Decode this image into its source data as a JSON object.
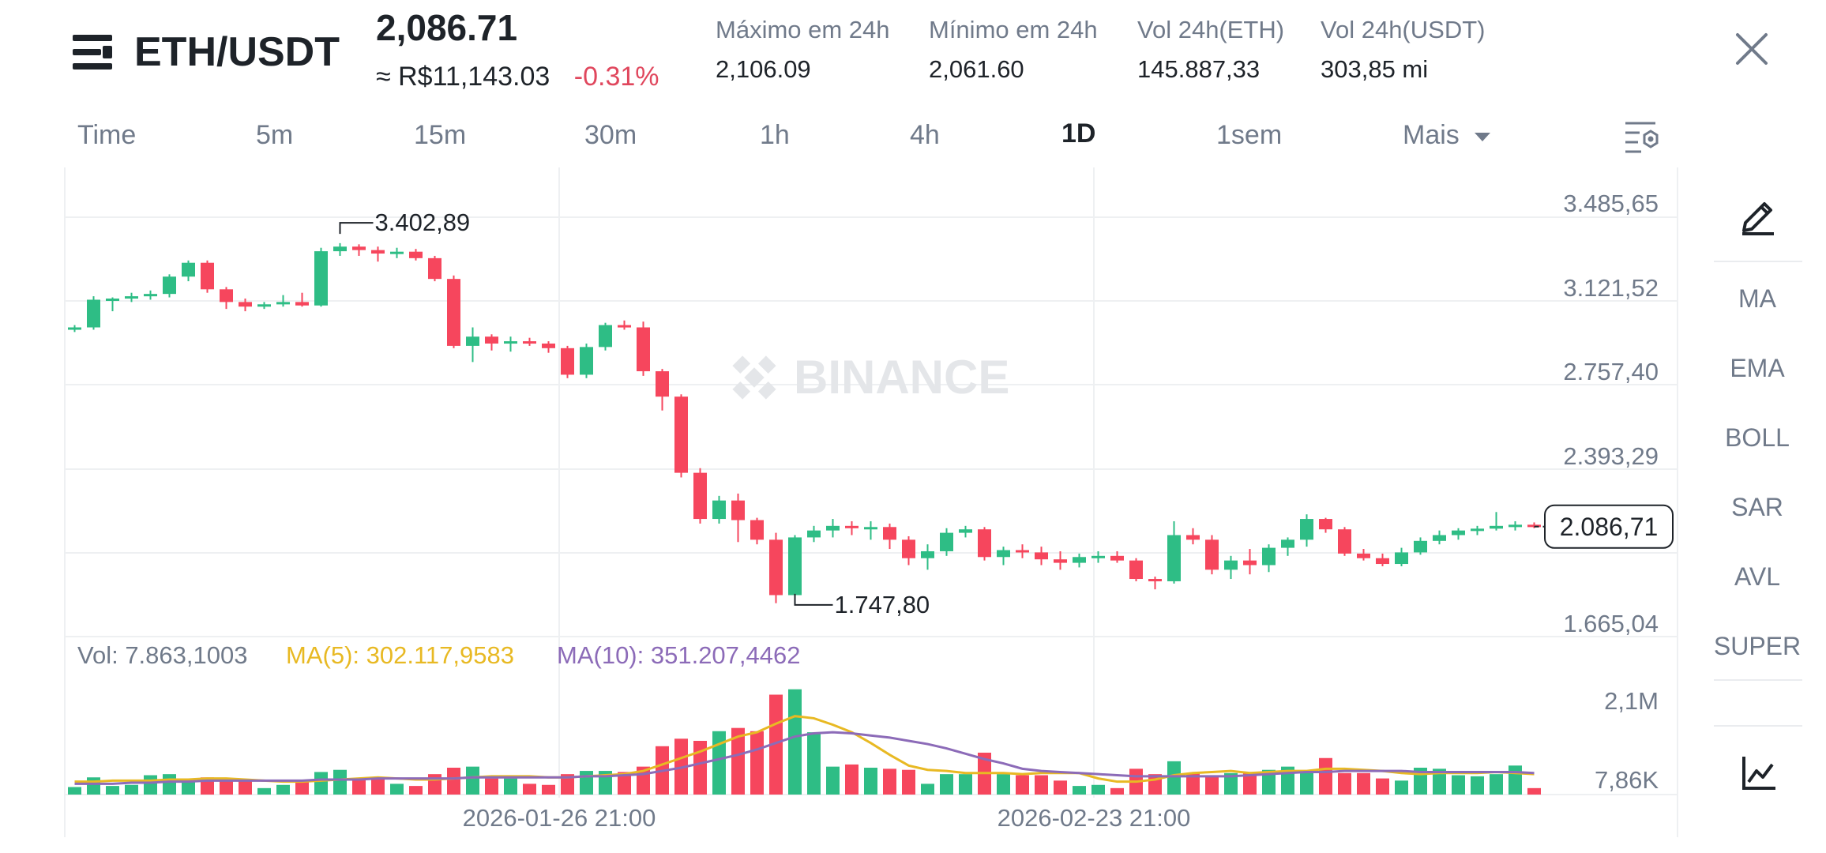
{
  "header": {
    "pair": "ETH/USDT",
    "last_price": "2,086.71",
    "fiat_price": "≈ R$11,143.03",
    "change_pct": "-0.31%",
    "stats": [
      {
        "label": "Máximo em 24h",
        "value": "2,106.09"
      },
      {
        "label": "Mínimo em 24h",
        "value": "2,061.60"
      },
      {
        "label": "Vol 24h(ETH)",
        "value": "145.887,33"
      },
      {
        "label": "Vol 24h(USDT)",
        "value": "303,85 mi"
      }
    ],
    "close_icon": "close-icon"
  },
  "timeframes": [
    "Time",
    "5m",
    "15m",
    "30m",
    "1h",
    "4h",
    "1D",
    "1sem",
    "Mais"
  ],
  "active_timeframe": "1D",
  "indicators": [
    "MA",
    "EMA",
    "BOLL",
    "SAR",
    "AVL",
    "SUPER"
  ],
  "watermark": "BINANCE",
  "colors": {
    "up": "#2ebd85",
    "down": "#f6465d",
    "ma5": "#e8b923",
    "ma10": "#8c6bb8"
  },
  "volume_legend": {
    "vol": "Vol: 7.863,1003",
    "ma5": "MA(5): 302.117,9583",
    "ma10": "MA(10): 351.207,4462"
  },
  "chart_data": {
    "type": "candlestick",
    "price_axis_labels": [
      "3.485,65",
      "3.121,52",
      "2.757,40",
      "2.393,29",
      "1.665,04"
    ],
    "price_axis_values": [
      3485.65,
      3121.52,
      2757.4,
      2393.29,
      1665.04
    ],
    "current_price_label": "2.086,71",
    "current_price": 2086.71,
    "high_marker": {
      "label": "3.402,89",
      "value": 3402.89
    },
    "low_marker": {
      "label": "1.747,80",
      "value": 1747.8
    },
    "x_labels": [
      "2026-01-26 21:00",
      "2026-02-23 21:00"
    ],
    "volume_axis_labels": [
      "2,1M",
      "7,86K"
    ],
    "candles": [
      {
        "o": 2940,
        "h": 2960,
        "l": 2930,
        "c": 2950
      },
      {
        "o": 2950,
        "h": 3085,
        "l": 2940,
        "c": 3070
      },
      {
        "o": 3070,
        "h": 3080,
        "l": 3020,
        "c": 3075
      },
      {
        "o": 3075,
        "h": 3100,
        "l": 3060,
        "c": 3085
      },
      {
        "o": 3085,
        "h": 3110,
        "l": 3070,
        "c": 3095
      },
      {
        "o": 3095,
        "h": 3180,
        "l": 3080,
        "c": 3170
      },
      {
        "o": 3170,
        "h": 3240,
        "l": 3150,
        "c": 3230
      },
      {
        "o": 3230,
        "h": 3240,
        "l": 3100,
        "c": 3115
      },
      {
        "o": 3115,
        "h": 3125,
        "l": 3030,
        "c": 3060
      },
      {
        "o": 3060,
        "h": 3075,
        "l": 3020,
        "c": 3040
      },
      {
        "o": 3040,
        "h": 3060,
        "l": 3030,
        "c": 3050
      },
      {
        "o": 3050,
        "h": 3090,
        "l": 3040,
        "c": 3060
      },
      {
        "o": 3060,
        "h": 3100,
        "l": 3040,
        "c": 3045
      },
      {
        "o": 3045,
        "h": 3295,
        "l": 3040,
        "c": 3280
      },
      {
        "o": 3280,
        "h": 3315,
        "l": 3260,
        "c": 3300
      },
      {
        "o": 3300,
        "h": 3310,
        "l": 3260,
        "c": 3285
      },
      {
        "o": 3285,
        "h": 3300,
        "l": 3235,
        "c": 3270
      },
      {
        "o": 3270,
        "h": 3295,
        "l": 3250,
        "c": 3278
      },
      {
        "o": 3278,
        "h": 3290,
        "l": 3240,
        "c": 3250
      },
      {
        "o": 3250,
        "h": 3260,
        "l": 3150,
        "c": 3160
      },
      {
        "o": 3160,
        "h": 3175,
        "l": 2860,
        "c": 2870
      },
      {
        "o": 2870,
        "h": 2950,
        "l": 2800,
        "c": 2910
      },
      {
        "o": 2910,
        "h": 2920,
        "l": 2850,
        "c": 2880
      },
      {
        "o": 2880,
        "h": 2910,
        "l": 2845,
        "c": 2890
      },
      {
        "o": 2890,
        "h": 2905,
        "l": 2870,
        "c": 2880
      },
      {
        "o": 2880,
        "h": 2890,
        "l": 2840,
        "c": 2860
      },
      {
        "o": 2860,
        "h": 2870,
        "l": 2730,
        "c": 2745
      },
      {
        "o": 2745,
        "h": 2880,
        "l": 2730,
        "c": 2865
      },
      {
        "o": 2865,
        "h": 2970,
        "l": 2850,
        "c": 2960
      },
      {
        "o": 2960,
        "h": 2980,
        "l": 2940,
        "c": 2950
      },
      {
        "o": 2950,
        "h": 2975,
        "l": 2740,
        "c": 2760
      },
      {
        "o": 2760,
        "h": 2770,
        "l": 2590,
        "c": 2650
      },
      {
        "o": 2650,
        "h": 2660,
        "l": 2300,
        "c": 2320
      },
      {
        "o": 2320,
        "h": 2340,
        "l": 2100,
        "c": 2120
      },
      {
        "o": 2120,
        "h": 2220,
        "l": 2100,
        "c": 2200
      },
      {
        "o": 2200,
        "h": 2230,
        "l": 2020,
        "c": 2115
      },
      {
        "o": 2115,
        "h": 2125,
        "l": 2010,
        "c": 2030
      },
      {
        "o": 2030,
        "h": 2060,
        "l": 1755,
        "c": 1790
      },
      {
        "o": 1790,
        "h": 2050,
        "l": 1748,
        "c": 2040
      },
      {
        "o": 2040,
        "h": 2090,
        "l": 2020,
        "c": 2070
      },
      {
        "o": 2070,
        "h": 2120,
        "l": 2040,
        "c": 2090
      },
      {
        "o": 2090,
        "h": 2110,
        "l": 2050,
        "c": 2080
      },
      {
        "o": 2080,
        "h": 2110,
        "l": 2030,
        "c": 2085
      },
      {
        "o": 2085,
        "h": 2100,
        "l": 1990,
        "c": 2030
      },
      {
        "o": 2030,
        "h": 2045,
        "l": 1920,
        "c": 1950
      },
      {
        "o": 1950,
        "h": 2010,
        "l": 1900,
        "c": 1980
      },
      {
        "o": 1980,
        "h": 2080,
        "l": 1960,
        "c": 2060
      },
      {
        "o": 2060,
        "h": 2090,
        "l": 2040,
        "c": 2075
      },
      {
        "o": 2075,
        "h": 2085,
        "l": 1940,
        "c": 1955
      },
      {
        "o": 1955,
        "h": 2000,
        "l": 1920,
        "c": 1985
      },
      {
        "o": 1985,
        "h": 2010,
        "l": 1950,
        "c": 1975
      },
      {
        "o": 1975,
        "h": 2000,
        "l": 1920,
        "c": 1945
      },
      {
        "o": 1945,
        "h": 1980,
        "l": 1900,
        "c": 1930
      },
      {
        "o": 1930,
        "h": 1970,
        "l": 1910,
        "c": 1955
      },
      {
        "o": 1955,
        "h": 1980,
        "l": 1930,
        "c": 1960
      },
      {
        "o": 1960,
        "h": 1980,
        "l": 1930,
        "c": 1940
      },
      {
        "o": 1940,
        "h": 1950,
        "l": 1850,
        "c": 1860
      },
      {
        "o": 1860,
        "h": 1870,
        "l": 1815,
        "c": 1850
      },
      {
        "o": 1850,
        "h": 2110,
        "l": 1840,
        "c": 2050
      },
      {
        "o": 2050,
        "h": 2080,
        "l": 2010,
        "c": 2030
      },
      {
        "o": 2030,
        "h": 2050,
        "l": 1880,
        "c": 1900
      },
      {
        "o": 1900,
        "h": 1960,
        "l": 1860,
        "c": 1940
      },
      {
        "o": 1940,
        "h": 1990,
        "l": 1880,
        "c": 1920
      },
      {
        "o": 1920,
        "h": 2010,
        "l": 1890,
        "c": 1995
      },
      {
        "o": 1995,
        "h": 2040,
        "l": 1960,
        "c": 2030
      },
      {
        "o": 2030,
        "h": 2140,
        "l": 2000,
        "c": 2120
      },
      {
        "o": 2120,
        "h": 2125,
        "l": 2060,
        "c": 2075
      },
      {
        "o": 2075,
        "h": 2085,
        "l": 1960,
        "c": 1970
      },
      {
        "o": 1970,
        "h": 1990,
        "l": 1940,
        "c": 1950
      },
      {
        "o": 1950,
        "h": 1970,
        "l": 1915,
        "c": 1925
      },
      {
        "o": 1925,
        "h": 1995,
        "l": 1915,
        "c": 1975
      },
      {
        "o": 1975,
        "h": 2040,
        "l": 1965,
        "c": 2025
      },
      {
        "o": 2025,
        "h": 2070,
        "l": 2010,
        "c": 2050
      },
      {
        "o": 2050,
        "h": 2080,
        "l": 2030,
        "c": 2070
      },
      {
        "o": 2070,
        "h": 2090,
        "l": 2050,
        "c": 2078
      },
      {
        "o": 2078,
        "h": 2150,
        "l": 2070,
        "c": 2090
      },
      {
        "o": 2090,
        "h": 2110,
        "l": 2070,
        "c": 2095
      },
      {
        "o": 2095,
        "h": 2105,
        "l": 2080,
        "c": 2087
      }
    ],
    "volumes": [
      0.07,
      0.16,
      0.08,
      0.09,
      0.18,
      0.19,
      0.15,
      0.16,
      0.14,
      0.13,
      0.06,
      0.09,
      0.12,
      0.21,
      0.23,
      0.15,
      0.14,
      0.1,
      0.08,
      0.19,
      0.25,
      0.26,
      0.15,
      0.15,
      0.1,
      0.09,
      0.19,
      0.22,
      0.22,
      0.21,
      0.26,
      0.45,
      0.52,
      0.5,
      0.59,
      0.62,
      0.59,
      0.93,
      0.98,
      0.58,
      0.26,
      0.28,
      0.25,
      0.24,
      0.23,
      0.1,
      0.19,
      0.19,
      0.39,
      0.19,
      0.18,
      0.18,
      0.13,
      0.08,
      0.09,
      0.06,
      0.24,
      0.19,
      0.31,
      0.2,
      0.18,
      0.2,
      0.2,
      0.23,
      0.26,
      0.21,
      0.34,
      0.2,
      0.2,
      0.15,
      0.13,
      0.25,
      0.24,
      0.18,
      0.17,
      0.19,
      0.27,
      0.06
    ],
    "ma5": [
      0.12,
      0.12,
      0.13,
      0.13,
      0.13,
      0.14,
      0.14,
      0.15,
      0.15,
      0.14,
      0.13,
      0.12,
      0.12,
      0.13,
      0.14,
      0.15,
      0.16,
      0.15,
      0.14,
      0.14,
      0.15,
      0.16,
      0.17,
      0.17,
      0.17,
      0.16,
      0.16,
      0.17,
      0.18,
      0.19,
      0.22,
      0.28,
      0.34,
      0.4,
      0.47,
      0.54,
      0.58,
      0.66,
      0.73,
      0.71,
      0.65,
      0.58,
      0.48,
      0.37,
      0.27,
      0.23,
      0.22,
      0.2,
      0.2,
      0.2,
      0.19,
      0.2,
      0.2,
      0.2,
      0.15,
      0.12,
      0.12,
      0.14,
      0.18,
      0.2,
      0.21,
      0.22,
      0.2,
      0.21,
      0.22,
      0.22,
      0.24,
      0.24,
      0.23,
      0.22,
      0.2,
      0.19,
      0.2,
      0.2,
      0.2,
      0.21,
      0.2,
      0.19
    ],
    "ma10": [
      0.1,
      0.1,
      0.1,
      0.11,
      0.11,
      0.12,
      0.12,
      0.13,
      0.13,
      0.13,
      0.13,
      0.13,
      0.13,
      0.14,
      0.14,
      0.14,
      0.15,
      0.15,
      0.15,
      0.15,
      0.15,
      0.16,
      0.16,
      0.16,
      0.16,
      0.16,
      0.16,
      0.17,
      0.17,
      0.18,
      0.19,
      0.22,
      0.25,
      0.29,
      0.33,
      0.37,
      0.42,
      0.48,
      0.54,
      0.57,
      0.58,
      0.57,
      0.55,
      0.53,
      0.5,
      0.47,
      0.43,
      0.38,
      0.33,
      0.29,
      0.24,
      0.22,
      0.21,
      0.2,
      0.19,
      0.18,
      0.17,
      0.17,
      0.17,
      0.17,
      0.17,
      0.17,
      0.18,
      0.19,
      0.2,
      0.21,
      0.21,
      0.22,
      0.22,
      0.22,
      0.22,
      0.21,
      0.21,
      0.21,
      0.21,
      0.21,
      0.21,
      0.2
    ]
  }
}
